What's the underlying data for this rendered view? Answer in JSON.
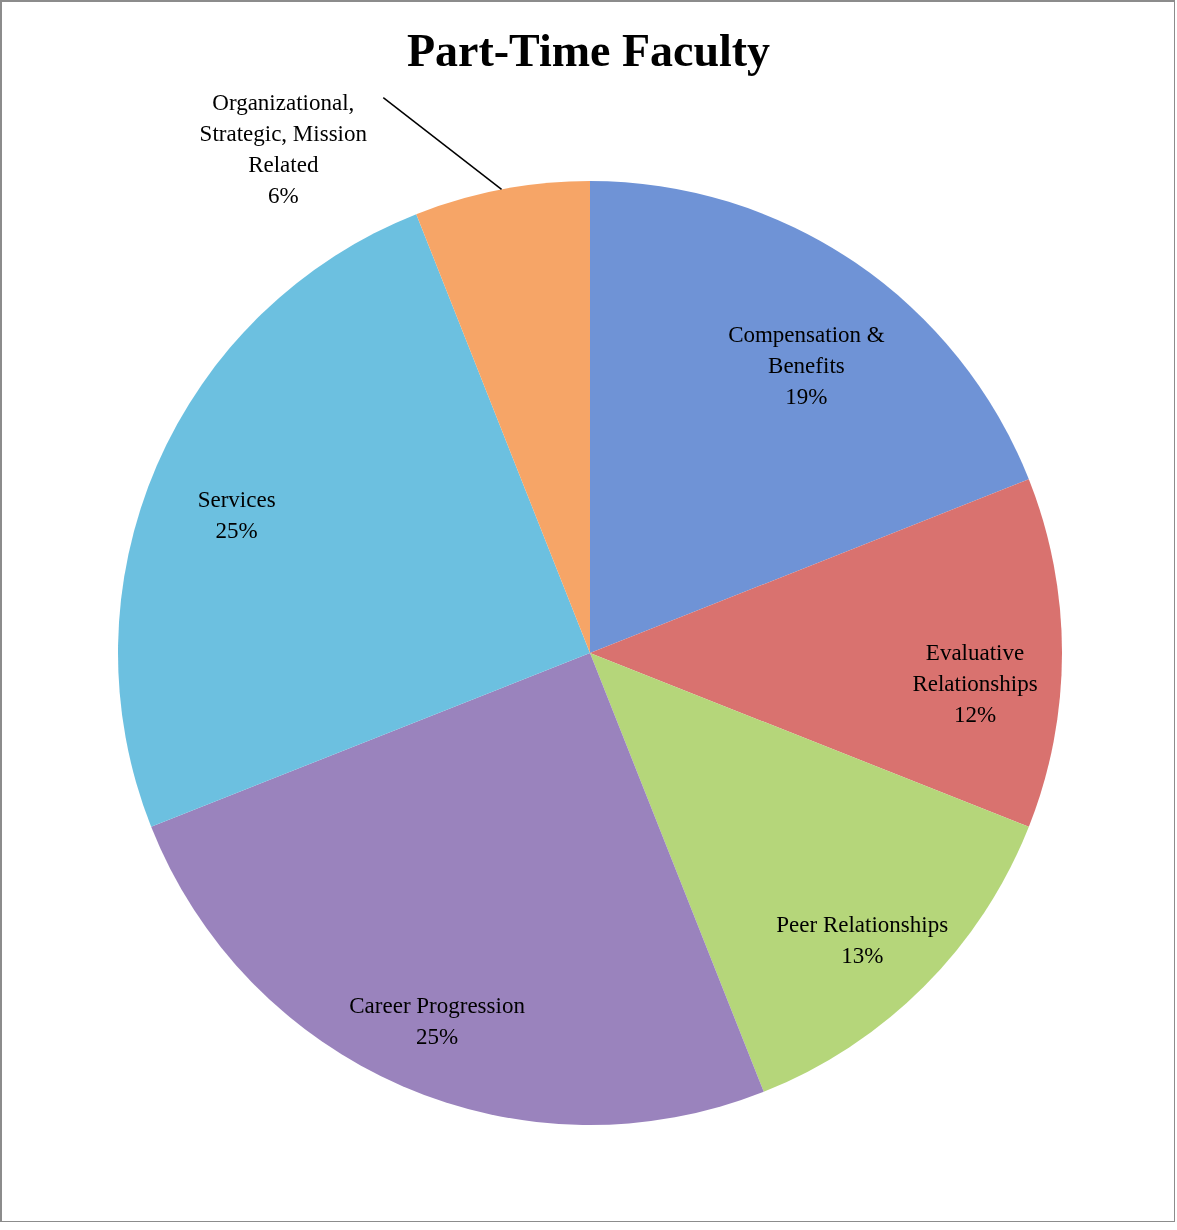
{
  "chart_data": {
    "type": "pie",
    "title": "Part-Time Faculty",
    "categories": [
      "Compensation & Benefits",
      "Evaluative Relationships",
      "Peer Relationships",
      "Career Progression",
      "Services",
      "Organizational, Strategic, Mission Related"
    ],
    "values": [
      19,
      12,
      13,
      25,
      25,
      6
    ],
    "colors": [
      "#6f93d6",
      "#d9726f",
      "#b5d67a",
      "#9a83bd",
      "#6cc0e0",
      "#f6a567"
    ],
    "value_labels": [
      "19%",
      "12%",
      "13%",
      "25%",
      "25%",
      "6%"
    ],
    "legend": false
  }
}
